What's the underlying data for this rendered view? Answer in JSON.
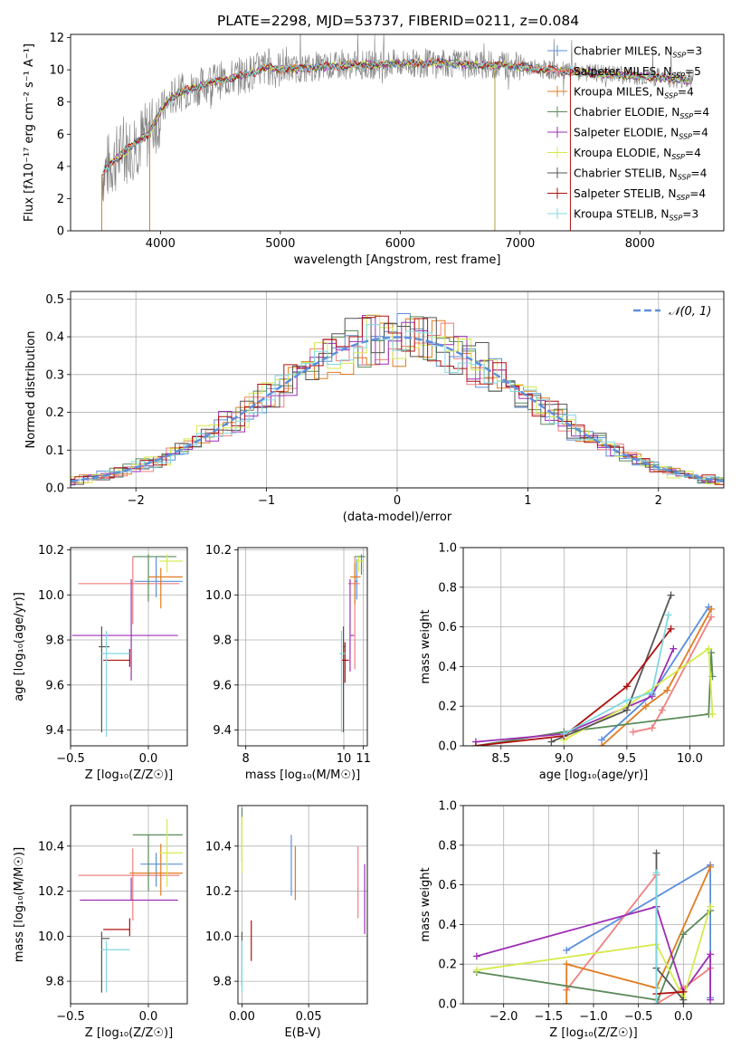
{
  "title": "PLATE=2298, MJD=53737, FIBERID=0211, z=0.084",
  "colors": {
    "Chabrier MILES": "#5b8fdd",
    "Salpeter MILES": "#f08080",
    "Kroupa MILES": "#e07c20",
    "Chabrier ELODIE": "#5a8a5a",
    "Salpeter ELODIE": "#9d2eb5",
    "Kroupa ELODIE": "#d5ea4a",
    "Chabrier STELIB": "#555555",
    "Salpeter STELIB": "#b01010",
    "Kroupa STELIB": "#80d8e0",
    "observed": "#808080",
    "normal": "#5b8fdd"
  },
  "models": [
    {
      "name": "Chabrier MILES",
      "nssp": "3"
    },
    {
      "name": "Salpeter MILES",
      "nssp": "5"
    },
    {
      "name": "Kroupa MILES",
      "nssp": "4"
    },
    {
      "name": "Chabrier ELODIE",
      "nssp": "4"
    },
    {
      "name": "Salpeter ELODIE",
      "nssp": "4"
    },
    {
      "name": "Kroupa ELODIE",
      "nssp": "4"
    },
    {
      "name": "Chabrier STELIB",
      "nssp": "4"
    },
    {
      "name": "Salpeter STELIB",
      "nssp": "4"
    },
    {
      "name": "Kroupa STELIB",
      "nssp": "3"
    }
  ],
  "chart_data": [
    {
      "id": "spectrum",
      "type": "line",
      "xlabel": "wavelength [Angstrom, rest frame]",
      "ylabel": "Flux [fλ10⁻¹⁷ erg cm⁻² s⁻¹ A⁻¹]",
      "xlim": [
        3250,
        8700
      ],
      "ylim": [
        0,
        12.2
      ],
      "xticks": [
        4000,
        5000,
        6000,
        7000,
        8000
      ],
      "yticks": [
        0,
        2,
        4,
        6,
        8,
        10,
        12
      ],
      "legend_position": "right",
      "model_curve": {
        "x": [
          3520,
          3600,
          3700,
          3800,
          3900,
          4000,
          4100,
          4200,
          4300,
          4400,
          4600,
          4800,
          4900,
          5000,
          5200,
          5400,
          5600,
          5800,
          6000,
          6200,
          6400,
          6600,
          6800,
          7000,
          7200,
          7400,
          7600,
          7800,
          8000,
          8200,
          8400
        ],
        "y": [
          3.6,
          4.3,
          4.9,
          5.5,
          6.0,
          7.4,
          8.3,
          8.7,
          8.9,
          9.2,
          9.5,
          9.9,
          10.2,
          10.0,
          10.1,
          10.2,
          10.3,
          10.3,
          10.4,
          10.4,
          10.4,
          10.3,
          10.3,
          10.2,
          10.0,
          9.9,
          9.8,
          9.7,
          9.6,
          9.5,
          9.4
        ]
      }
    },
    {
      "id": "residuals",
      "type": "step-histogram",
      "xlabel": "(data-model)/error",
      "ylabel": "Normed distribution",
      "xlim": [
        -2.5,
        2.5
      ],
      "ylim": [
        0,
        0.52
      ],
      "xticks": [
        -2,
        -1,
        0,
        1,
        2
      ],
      "yticks": [
        0.0,
        0.1,
        0.2,
        0.3,
        0.4,
        0.5
      ],
      "reference_label": "𝒩(0, 1)",
      "grid": true,
      "legend_position": "top-right"
    },
    {
      "id": "z_age",
      "type": "errorbar",
      "xlabel": "Z [log₁₀(Z/Z☉)]",
      "ylabel": "age  [log₁₀(age/yr)]",
      "xlim": [
        -0.5,
        0.25
      ],
      "ylim": [
        9.33,
        10.21
      ],
      "xticks": [
        -0.5,
        0.0
      ],
      "yticks": [
        9.4,
        9.6,
        9.8,
        10.0,
        10.2
      ],
      "grid": true,
      "points": [
        {
          "model": "Chabrier MILES",
          "x": 0.05,
          "xerr": [
            0.14,
            0.17
          ],
          "y": 10.06,
          "yerr": [
            0.07,
            0.11
          ]
        },
        {
          "model": "Salpeter MILES",
          "x": -0.1,
          "xerr": [
            0.35,
            0.3
          ],
          "y": 10.05,
          "yerr": [
            0.18,
            0.12
          ]
        },
        {
          "model": "Kroupa MILES",
          "x": 0.08,
          "xerr": [
            0.08,
            0.14
          ],
          "y": 10.08,
          "yerr": [
            0.14,
            0.04
          ]
        },
        {
          "model": "Chabrier ELODIE",
          "x": 0.0,
          "xerr": [
            0.1,
            0.18
          ],
          "y": 10.17,
          "yerr": [
            0.2,
            0.01
          ]
        },
        {
          "model": "Salpeter ELODIE",
          "x": -0.11,
          "xerr": [
            0.38,
            0.3
          ],
          "y": 9.82,
          "yerr": [
            0.2,
            0.25
          ]
        },
        {
          "model": "Kroupa ELODIE",
          "x": 0.12,
          "xerr": [
            0.05,
            0.1
          ],
          "y": 10.15,
          "yerr": [
            0.05,
            0.03
          ]
        },
        {
          "model": "Chabrier STELIB",
          "x": -0.3,
          "xerr": [
            0.02,
            0.05
          ],
          "y": 9.77,
          "yerr": [
            0.38,
            0.09
          ]
        },
        {
          "model": "Salpeter STELIB",
          "x": -0.12,
          "xerr": [
            0.17,
            0.0
          ],
          "y": 9.71,
          "yerr": [
            0.03,
            0.05
          ]
        },
        {
          "model": "Kroupa STELIB",
          "x": -0.27,
          "xerr": [
            0.03,
            0.15
          ],
          "y": 9.74,
          "yerr": [
            0.37,
            0.1
          ]
        }
      ]
    },
    {
      "id": "mass_age",
      "type": "errorbar",
      "xlabel": "mass [log₁₀(M/M☉)]",
      "ylabel": "",
      "xlim": [
        7.3,
        10.6
      ],
      "ylim": [
        9.33,
        10.21
      ],
      "xticks": [
        7.5,
        10.0,
        10.5
      ],
      "yticks": [
        9.4,
        9.6,
        9.8,
        10.0,
        10.2
      ],
      "grid": true,
      "points": [
        {
          "model": "Chabrier MILES",
          "x": 10.33,
          "xerr": [
            0.05,
            0.02
          ],
          "y": 10.06,
          "yerr": [
            0.08,
            0.1
          ]
        },
        {
          "model": "Salpeter MILES",
          "x": 10.28,
          "xerr": [
            0.17,
            0.12
          ],
          "y": 10.05,
          "yerr": [
            0.38,
            0.12
          ]
        },
        {
          "model": "Kroupa MILES",
          "x": 10.28,
          "xerr": [
            0.12,
            0.15
          ],
          "y": 10.08,
          "yerr": [
            0.12,
            0.06
          ]
        },
        {
          "model": "Chabrier ELODIE",
          "x": 10.45,
          "xerr": [
            0.18,
            0.1
          ],
          "y": 10.17,
          "yerr": [
            0.08,
            0.01
          ]
        },
        {
          "model": "Salpeter ELODIE",
          "x": 10.16,
          "xerr": [
            0.0,
            0.1
          ],
          "y": 9.82,
          "yerr": [
            0.16,
            0.25
          ]
        },
        {
          "model": "Kroupa ELODIE",
          "x": 10.38,
          "xerr": [
            0.1,
            0.12
          ],
          "y": 10.15,
          "yerr": [
            0.05,
            0.02
          ]
        },
        {
          "model": "Chabrier STELIB",
          "x": 9.99,
          "xerr": [
            0.0,
            0.04
          ],
          "y": 9.77,
          "yerr": [
            0.38,
            0.09
          ]
        },
        {
          "model": "Salpeter STELIB",
          "x": 10.03,
          "xerr": [
            0.08,
            0.1
          ],
          "y": 9.71,
          "yerr": [
            0.1,
            0.08
          ]
        },
        {
          "model": "Kroupa STELIB",
          "x": 9.94,
          "xerr": [
            0.05,
            0.1
          ],
          "y": 9.74,
          "yerr": [
            0.35,
            0.1
          ]
        }
      ]
    },
    {
      "id": "age_weight",
      "type": "line",
      "xlabel": "age  [log₁₀(age/yr)]",
      "ylabel": "mass weight",
      "xlim": [
        8.2,
        10.27
      ],
      "ylim": [
        0,
        1
      ],
      "xticks": [
        8.5,
        9.0,
        9.5,
        10.0
      ],
      "yticks": [
        0.0,
        0.2,
        0.4,
        0.6,
        0.8,
        1.0
      ],
      "grid": true,
      "series": [
        {
          "model": "Chabrier MILES",
          "x": [
            9.3,
            9.7,
            10.15
          ],
          "y": [
            0.03,
            0.26,
            0.7
          ]
        },
        {
          "model": "Salpeter MILES",
          "x": [
            9.55,
            9.7,
            9.78,
            10.17
          ],
          "y": [
            0.07,
            0.09,
            0.18,
            0.65
          ]
        },
        {
          "model": "Kroupa MILES",
          "x": [
            9.3,
            9.65,
            9.82,
            10.17
          ],
          "y": [
            0.0,
            0.2,
            0.28,
            0.69
          ]
        },
        {
          "model": "Chabrier ELODIE",
          "x": [
            8.3,
            9.0,
            10.15,
            10.17,
            10.18
          ],
          "y": [
            0.0,
            0.07,
            0.16,
            0.47,
            0.35
          ]
        },
        {
          "model": "Salpeter ELODIE",
          "x": [
            8.3,
            9.0,
            9.7,
            9.87
          ],
          "y": [
            0.02,
            0.06,
            0.25,
            0.49
          ]
        },
        {
          "model": "Kroupa ELODIE",
          "x": [
            9.0,
            9.5,
            10.15,
            10.18
          ],
          "y": [
            0.03,
            0.2,
            0.49,
            0.16
          ]
        },
        {
          "model": "Chabrier STELIB",
          "x": [
            8.9,
            9.5,
            9.85
          ],
          "y": [
            0.02,
            0.18,
            0.76
          ]
        },
        {
          "model": "Salpeter STELIB",
          "x": [
            8.3,
            9.0,
            9.5,
            9.85
          ],
          "y": [
            0.0,
            0.05,
            0.3,
            0.59
          ]
        },
        {
          "model": "Kroupa STELIB",
          "x": [
            9.0,
            9.5,
            9.7,
            9.83
          ],
          "y": [
            0.06,
            0.23,
            0.27,
            0.66
          ]
        }
      ]
    },
    {
      "id": "z_mass",
      "type": "errorbar",
      "xlabel": "Z [log₁₀(Z/Z☉)]",
      "ylabel": "mass [log₁₀(M/M☉)]",
      "xlim": [
        -0.5,
        0.25
      ],
      "ylim": [
        9.7,
        10.58
      ],
      "xticks": [
        -0.5,
        0.0
      ],
      "yticks": [
        9.8,
        10.0,
        10.2,
        10.4
      ],
      "grid": true,
      "points": [
        {
          "model": "Chabrier MILES",
          "x": 0.05,
          "xerr": [
            0.1,
            0.17
          ],
          "y": 10.32,
          "yerr": [
            0.1,
            0.05
          ]
        },
        {
          "model": "Salpeter MILES",
          "x": -0.1,
          "xerr": [
            0.35,
            0.3
          ],
          "y": 10.27,
          "yerr": [
            0.2,
            0.12
          ]
        },
        {
          "model": "Kroupa MILES",
          "x": 0.08,
          "xerr": [
            0.2,
            0.14
          ],
          "y": 10.28,
          "yerr": [
            0.1,
            0.13
          ]
        },
        {
          "model": "Chabrier ELODIE",
          "x": 0.0,
          "xerr": [
            0.1,
            0.22
          ],
          "y": 10.45,
          "yerr": [
            0.25,
            0.0
          ]
        },
        {
          "model": "Salpeter ELODIE",
          "x": -0.11,
          "xerr": [
            0.33,
            0.3
          ],
          "y": 10.16,
          "yerr": [
            0.0,
            0.1
          ]
        },
        {
          "model": "Kroupa ELODIE",
          "x": 0.12,
          "xerr": [
            0.05,
            0.1
          ],
          "y": 10.37,
          "yerr": [
            0.15,
            0.15
          ]
        },
        {
          "model": "Chabrier STELIB",
          "x": -0.3,
          "xerr": [
            0.0,
            0.05
          ],
          "y": 9.99,
          "yerr": [
            0.24,
            0.03
          ]
        },
        {
          "model": "Salpeter STELIB",
          "x": -0.12,
          "xerr": [
            0.17,
            0.0
          ],
          "y": 10.03,
          "yerr": [
            0.03,
            0.05
          ]
        },
        {
          "model": "Kroupa STELIB",
          "x": -0.27,
          "xerr": [
            0.03,
            0.15
          ],
          "y": 9.94,
          "yerr": [
            0.19,
            0.04
          ]
        }
      ]
    },
    {
      "id": "ebv_mass",
      "type": "errorbar",
      "xlabel": "E(B-V)",
      "ylabel": "",
      "xlim": [
        -0.003,
        0.094
      ],
      "ylim": [
        9.7,
        10.58
      ],
      "xticks": [
        0.0,
        0.05
      ],
      "yticks": [
        9.8,
        10.0,
        10.2,
        10.4
      ],
      "grid": true,
      "points": [
        {
          "model": "Chabrier MILES",
          "x": 0.037,
          "y": 10.32,
          "yerr": [
            0.14,
            0.13
          ]
        },
        {
          "model": "Salpeter MILES",
          "x": 0.087,
          "y": 10.24,
          "yerr": [
            0.16,
            0.16
          ]
        },
        {
          "model": "Kroupa MILES",
          "x": 0.04,
          "y": 10.28,
          "yerr": [
            0.12,
            0.12
          ]
        },
        {
          "model": "Chabrier ELODIE",
          "x": 0.0,
          "y": 10.45,
          "yerr": [
            0.12,
            0.12
          ]
        },
        {
          "model": "Salpeter ELODIE",
          "x": 0.092,
          "y": 10.16,
          "yerr": [
            0.15,
            0.16
          ]
        },
        {
          "model": "Kroupa ELODIE",
          "x": 0.0,
          "y": 10.42,
          "yerr": [
            0.14,
            0.11
          ]
        },
        {
          "model": "Chabrier STELIB",
          "x": 0.0,
          "y": 9.99,
          "yerr": [
            0.21,
            0.03
          ]
        },
        {
          "model": "Salpeter STELIB",
          "x": 0.007,
          "y": 9.98,
          "yerr": [
            0.09,
            0.09
          ]
        },
        {
          "model": "Kroupa STELIB",
          "x": 0.0,
          "y": 9.94,
          "yerr": [
            0.19,
            0.04
          ]
        }
      ]
    },
    {
      "id": "z_weight",
      "type": "line",
      "xlabel": "Z [log₁₀(Z/Z☉)]",
      "ylabel": "mass weight",
      "xlim": [
        -2.45,
        0.45
      ],
      "ylim": [
        0,
        1
      ],
      "xticks": [
        -2.0,
        -1.5,
        -1.0,
        -0.5,
        0.0
      ],
      "yticks": [
        0.0,
        0.2,
        0.4,
        0.6,
        0.8,
        1.0
      ],
      "grid": true,
      "series": [
        {
          "model": "Chabrier MILES",
          "x": [
            -1.3,
            0.3,
            0.3
          ],
          "y": [
            0.27,
            0.7,
            0.03
          ]
        },
        {
          "model": "Salpeter MILES",
          "x": [
            -1.3,
            -0.3,
            -0.3,
            0.0,
            0.3
          ],
          "y": [
            0.07,
            0.65,
            0.0,
            0.08,
            0.18
          ]
        },
        {
          "model": "Kroupa MILES",
          "x": [
            -1.3,
            -1.3,
            -0.3,
            0.3
          ],
          "y": [
            0.0,
            0.2,
            0.08,
            0.69
          ]
        },
        {
          "model": "Chabrier ELODIE",
          "x": [
            -2.3,
            -0.3,
            -0.3,
            0.0,
            0.3
          ],
          "y": [
            0.16,
            0.02,
            0.0,
            0.35,
            0.47
          ]
        },
        {
          "model": "Salpeter ELODIE",
          "x": [
            -2.3,
            -0.3,
            0.0,
            0.3,
            0.3
          ],
          "y": [
            0.24,
            0.49,
            0.06,
            0.25,
            0.02
          ]
        },
        {
          "model": "Kroupa ELODIE",
          "x": [
            -2.3,
            -0.3,
            0.0,
            0.3
          ],
          "y": [
            0.17,
            0.3,
            0.03,
            0.49
          ]
        },
        {
          "model": "Chabrier STELIB",
          "x": [
            -0.3,
            -0.3,
            0.0,
            0.0
          ],
          "y": [
            0.76,
            0.18,
            0.02,
            0.0
          ]
        },
        {
          "model": "Salpeter STELIB",
          "x": [
            -0.3,
            0.0
          ],
          "y": [
            0.05,
            0.06
          ]
        },
        {
          "model": "Kroupa STELIB",
          "x": [
            -0.3,
            -0.3
          ],
          "y": [
            0.66,
            0.0
          ]
        }
      ]
    }
  ]
}
